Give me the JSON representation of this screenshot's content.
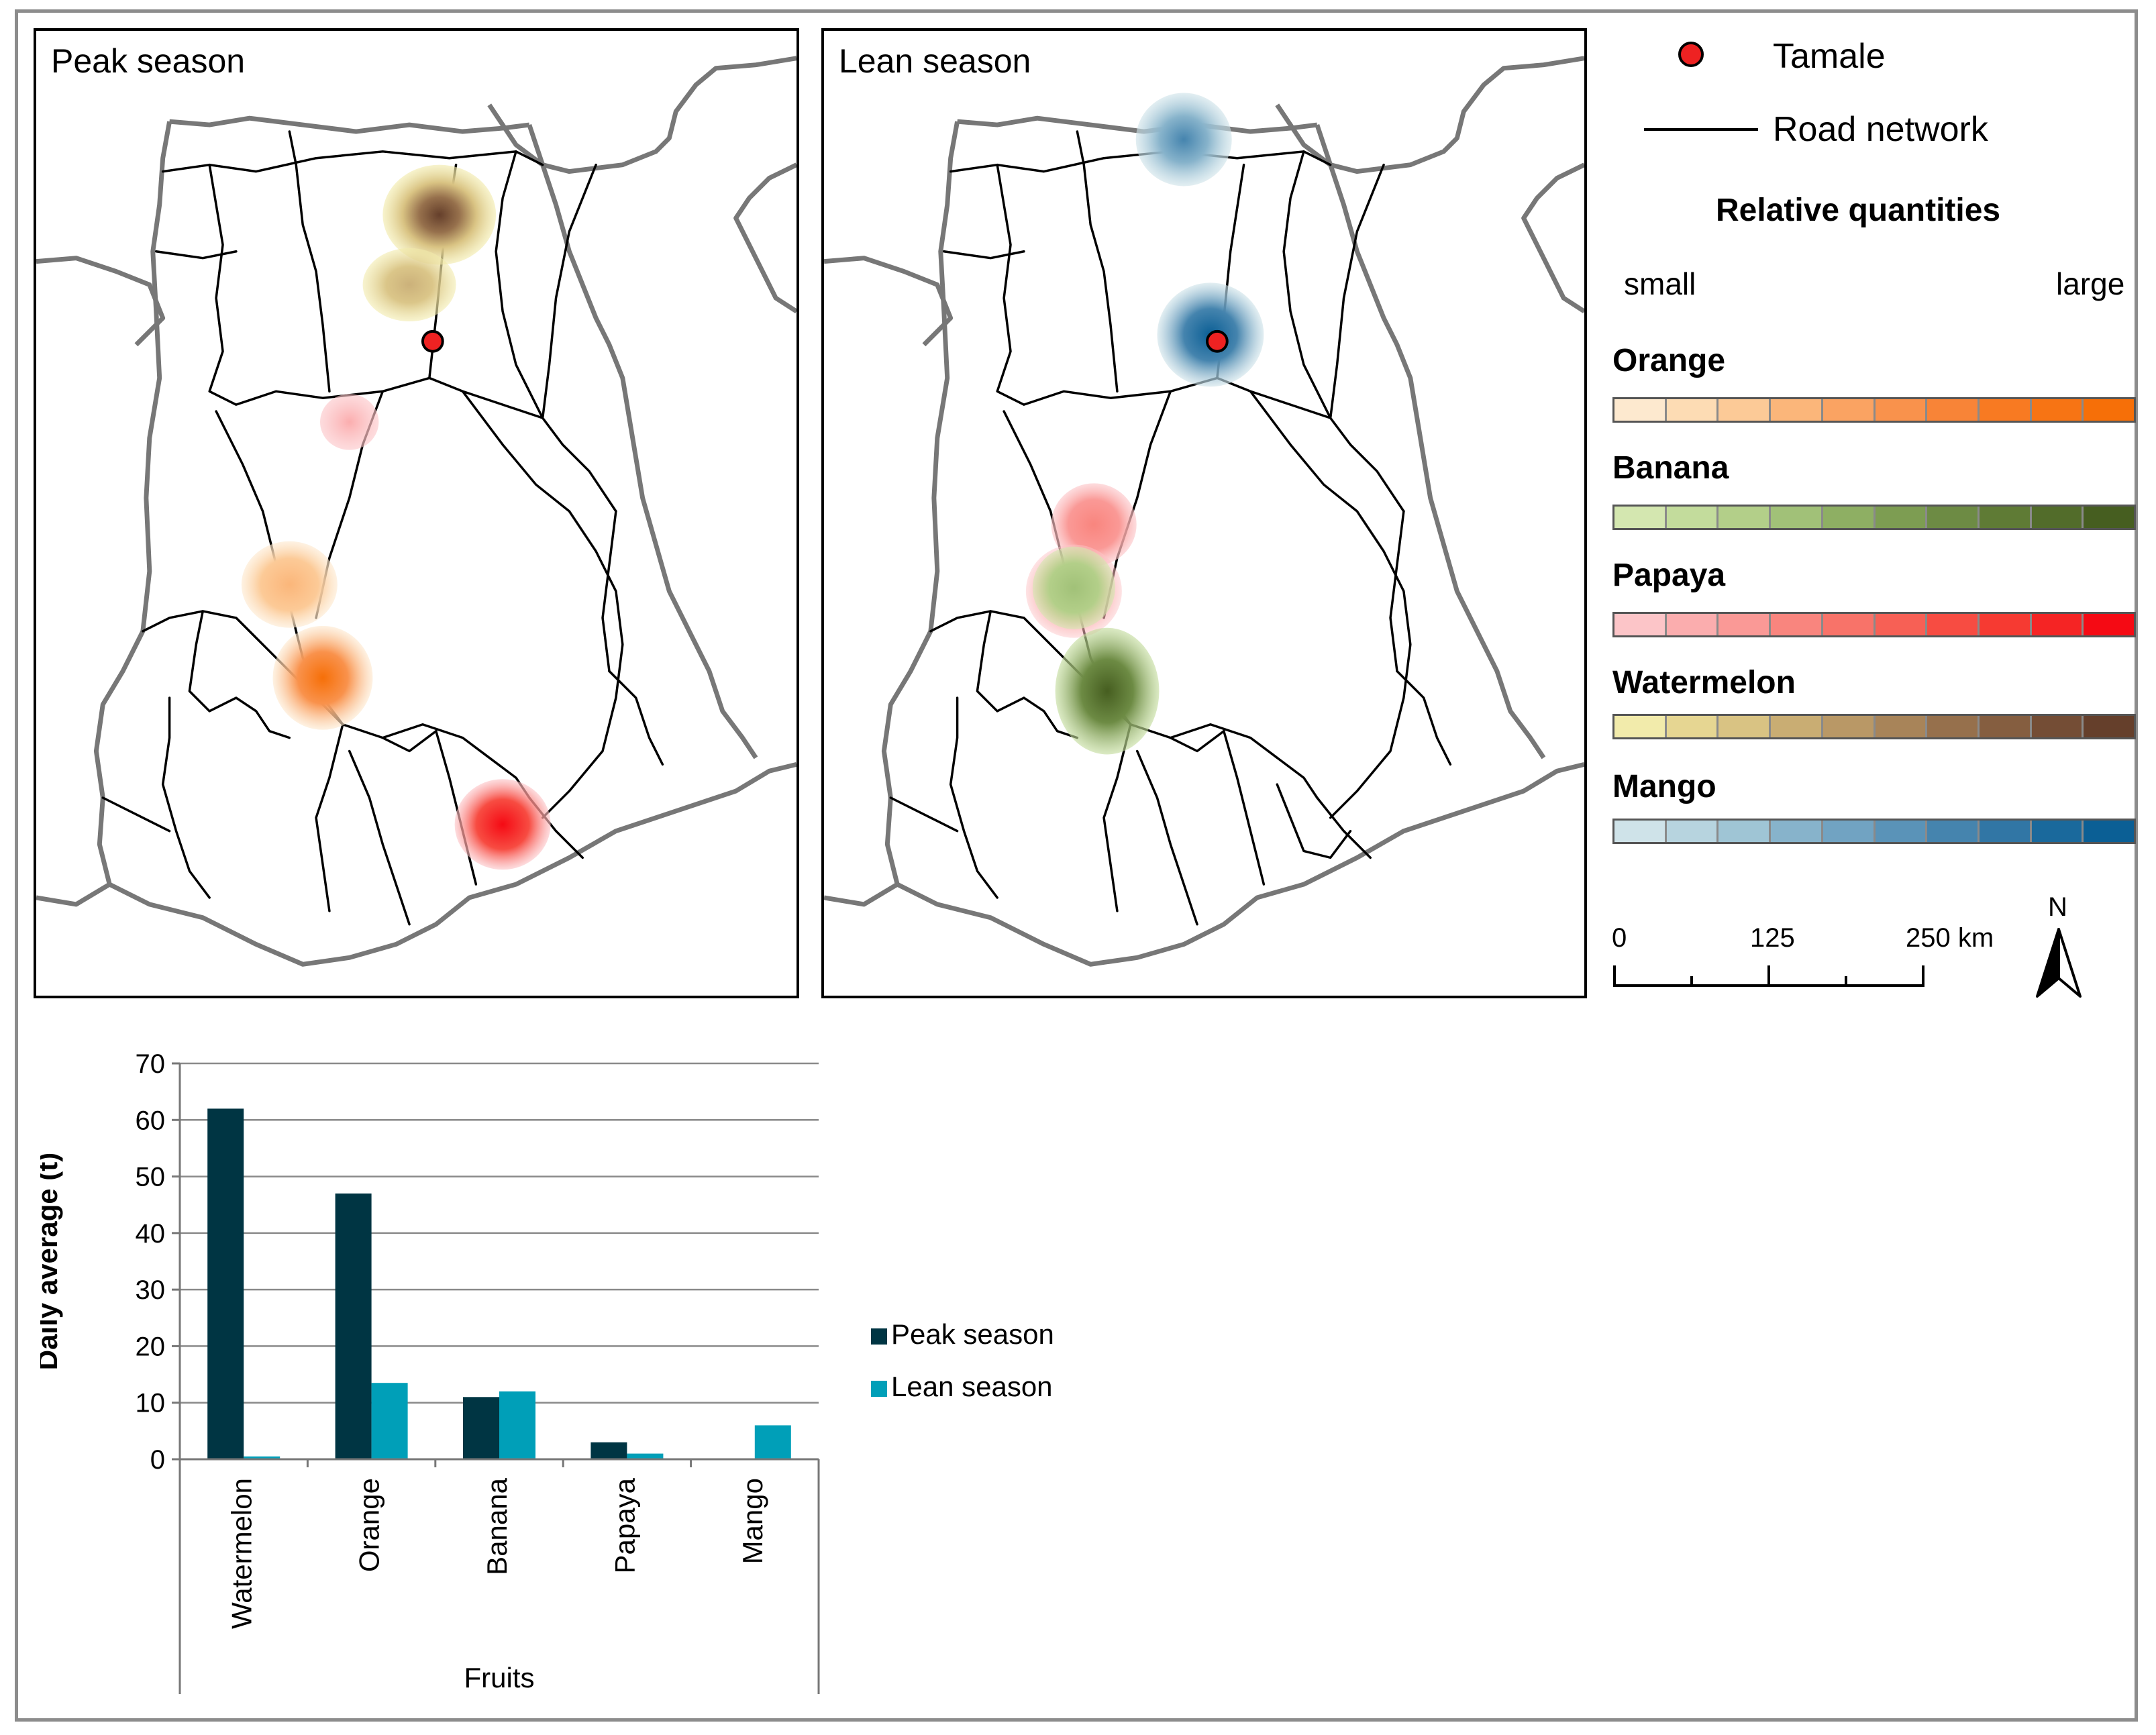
{
  "maps": {
    "peak_title": "Peak season",
    "lean_title": "Lean season"
  },
  "legend": {
    "tamale_label": "Tamale",
    "road_label": "Road network",
    "heading": "Relative quantities",
    "small_label": "small",
    "large_label": "large",
    "fruits": [
      {
        "name": "Orange",
        "ramp": [
          "#fde9cf",
          "#fddcb4",
          "#fcca97",
          "#fbb67a",
          "#faa362",
          "#f9924c",
          "#f88437",
          "#f87a22",
          "#f77414",
          "#f66f08"
        ]
      },
      {
        "name": "Banana",
        "ramp": [
          "#d4e7b0",
          "#c3dc9c",
          "#b3cf89",
          "#a1c178",
          "#8eaf63",
          "#7d9d52",
          "#6d8b44",
          "#5f7b35",
          "#526c2a",
          "#465e20"
        ]
      },
      {
        "name": "Papaya",
        "ramp": [
          "#fcc5c8",
          "#fbadae",
          "#fa9996",
          "#f9857e",
          "#f87369",
          "#f76055",
          "#f74c42",
          "#f63a32",
          "#f52424",
          "#f50a14"
        ]
      },
      {
        "name": "Watermelon",
        "ramp": [
          "#f2ebab",
          "#e6d692",
          "#d9c383",
          "#c9ad73",
          "#b99866",
          "#a88459",
          "#96704c",
          "#855e40",
          "#744d35",
          "#653f2b"
        ]
      },
      {
        "name": "Mango",
        "ramp": [
          "#cfe3e9",
          "#b7d4df",
          "#9fc5d5",
          "#87b3cb",
          "#71a3c2",
          "#5a93b8",
          "#4584ae",
          "#3176a5",
          "#1a699c",
          "#0b5f95"
        ]
      }
    ],
    "scale": {
      "tick_0": "0",
      "tick_1": "125",
      "tick_2": "250 km"
    },
    "north": "N"
  },
  "colors": {
    "peak_bar": "#003543",
    "lean_bar": "#009fb8",
    "tamale_fill": "#ee2222",
    "frame": "#8c8c8c"
  },
  "chart_data": {
    "type": "bar",
    "categories": [
      "Watermelon",
      "Orange",
      "Banana",
      "Papaya",
      "Mango"
    ],
    "series": [
      {
        "name": "Peak season",
        "values": [
          62,
          47,
          11,
          3,
          0
        ]
      },
      {
        "name": "Lean season",
        "values": [
          0.5,
          13.5,
          12,
          1,
          6
        ]
      }
    ],
    "ylabel": "Daily average (t)",
    "xlabel": "Fruits",
    "ylim": [
      0,
      70
    ],
    "yticks": [
      "0",
      "10",
      "20",
      "30",
      "40",
      "50",
      "60",
      "70"
    ],
    "grid": true,
    "legend_position": "right"
  }
}
